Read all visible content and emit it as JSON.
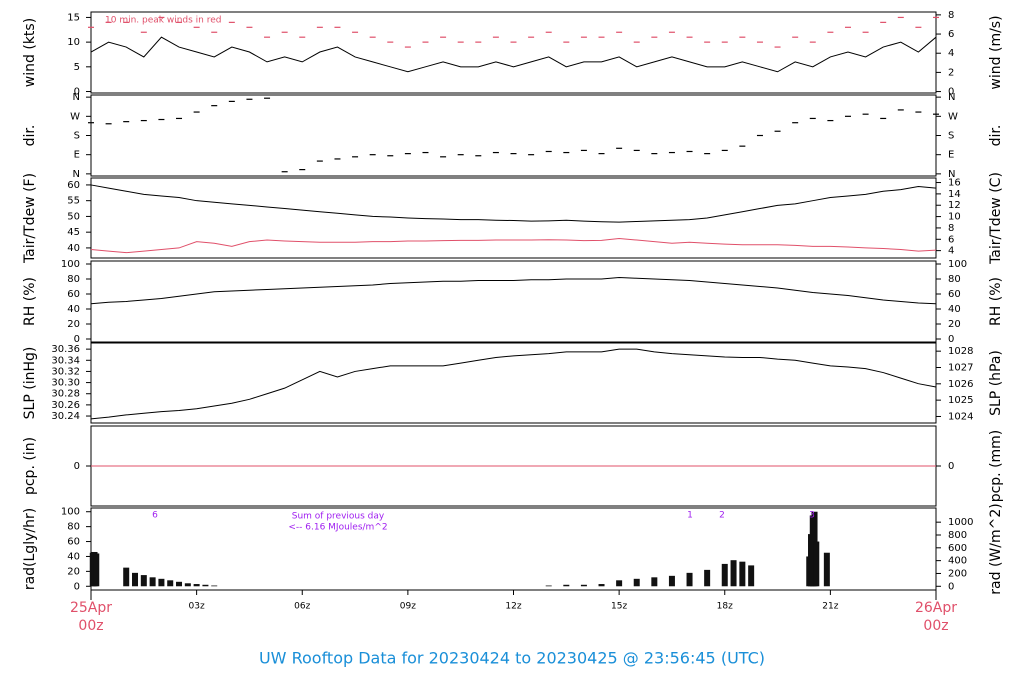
{
  "title": "UW Rooftop Data for 20230424  to  20230425 @ 23:56:45  (UTC)",
  "chart_data": [
    {
      "type": "line",
      "ylabel": "wind (kts)",
      "y2label": "wind (m/s)",
      "annotations": [
        "10 min. peak winds in red"
      ],
      "annotation_color": "#e0506a",
      "xlim": [
        0,
        24
      ],
      "ylim": [
        -0.3,
        16.1
      ],
      "yticks": [
        0,
        5,
        10,
        15
      ],
      "y2lim": [
        -0.15,
        8.3
      ],
      "y2ticks": [
        0,
        2,
        4,
        6,
        8
      ],
      "x": [
        0,
        0.5,
        1,
        1.5,
        2,
        2.5,
        3,
        3.5,
        4,
        4.5,
        5,
        5.5,
        6,
        6.5,
        7,
        7.5,
        8,
        8.5,
        9,
        9.5,
        10,
        10.5,
        11,
        11.5,
        12,
        12.5,
        13,
        13.5,
        14,
        14.5,
        15,
        15.5,
        16,
        16.5,
        17,
        17.5,
        18,
        18.5,
        19,
        19.5,
        20,
        20.5,
        21,
        21.5,
        22,
        22.5,
        23,
        23.5,
        24
      ],
      "series": [
        {
          "color": "#000000",
          "marker": "line",
          "values": [
            8,
            10,
            9,
            7,
            11,
            9,
            8,
            7,
            9,
            8,
            6,
            7,
            6,
            8,
            9,
            7,
            6,
            5,
            4,
            5,
            6,
            5,
            5,
            6,
            5,
            6,
            7,
            5,
            6,
            6,
            7,
            5,
            6,
            7,
            6,
            5,
            5,
            6,
            5,
            4,
            6,
            5,
            7,
            8,
            7,
            9,
            10,
            8,
            11
          ]
        },
        {
          "color": "#e0506a",
          "marker": "dash",
          "values": [
            13,
            14,
            14,
            12,
            15,
            14,
            13,
            12,
            14,
            13,
            11,
            12,
            11,
            13,
            13,
            12,
            11,
            10,
            9,
            10,
            11,
            10,
            10,
            11,
            10,
            11,
            12,
            10,
            11,
            11,
            12,
            10,
            11,
            12,
            11,
            10,
            10,
            11,
            10,
            9,
            11,
            10,
            12,
            13,
            12,
            14,
            15,
            13,
            15
          ]
        }
      ]
    },
    {
      "type": "scatter",
      "ylabel": "dir.",
      "y2label": "dir.",
      "xlim": [
        0,
        24
      ],
      "ylim": [
        -10,
        370
      ],
      "yticks": [
        {
          "value": 0,
          "label": "N"
        },
        {
          "value": 90,
          "label": "E"
        },
        {
          "value": 180,
          "label": "S"
        },
        {
          "value": 270,
          "label": "W"
        },
        {
          "value": 360,
          "label": "N"
        }
      ],
      "y2lim": [
        -10,
        370
      ],
      "y2ticks": [
        {
          "value": 0,
          "label": "N"
        },
        {
          "value": 90,
          "label": "E"
        },
        {
          "value": 180,
          "label": "S"
        },
        {
          "value": 270,
          "label": "W"
        },
        {
          "value": 360,
          "label": "N"
        }
      ],
      "x": [
        0,
        0.5,
        1,
        1.5,
        2,
        2.5,
        3,
        3.5,
        4,
        4.5,
        5,
        5.5,
        6,
        6.5,
        7,
        7.5,
        8,
        8.5,
        9,
        9.5,
        10,
        10.5,
        11,
        11.5,
        12,
        12.5,
        13,
        13.5,
        14,
        14.5,
        15,
        15.5,
        16,
        16.5,
        17,
        17.5,
        18,
        18.5,
        19,
        19.5,
        20,
        20.5,
        21,
        21.5,
        22,
        22.5,
        23,
        23.5,
        24
      ],
      "series": [
        {
          "color": "#000000",
          "marker": "dash",
          "values": [
            240,
            235,
            245,
            250,
            255,
            260,
            290,
            320,
            340,
            350,
            355,
            10,
            20,
            60,
            70,
            80,
            90,
            85,
            95,
            100,
            80,
            90,
            85,
            100,
            95,
            90,
            105,
            100,
            110,
            95,
            120,
            110,
            95,
            100,
            105,
            95,
            110,
            130,
            180,
            200,
            240,
            260,
            250,
            270,
            280,
            260,
            300,
            290,
            280
          ]
        }
      ]
    },
    {
      "type": "line",
      "ylabel": "Tair/Tdew (F)",
      "y2label": "Tair/Tdew (C)",
      "xlim": [
        0,
        24
      ],
      "ylim": [
        36.8,
        62.2
      ],
      "yticks": [
        40,
        45,
        50,
        55,
        60
      ],
      "y2lim": [
        2.7,
        16.8
      ],
      "y2ticks": [
        4,
        6,
        8,
        10,
        12,
        14,
        16
      ],
      "x": [
        0,
        0.5,
        1,
        1.5,
        2,
        2.5,
        3,
        3.5,
        4,
        4.5,
        5,
        5.5,
        6,
        6.5,
        7,
        7.5,
        8,
        8.5,
        9,
        9.5,
        10,
        10.5,
        11,
        11.5,
        12,
        12.5,
        13,
        13.5,
        14,
        14.5,
        15,
        15.5,
        16,
        16.5,
        17,
        17.5,
        18,
        18.5,
        19,
        19.5,
        20,
        20.5,
        21,
        21.5,
        22,
        22.5,
        23,
        23.5,
        24
      ],
      "series": [
        {
          "color": "#000000",
          "marker": "line",
          "values": [
            60,
            59,
            58,
            57,
            56.5,
            56,
            55,
            54.5,
            54,
            53.5,
            53,
            52.5,
            52,
            51.5,
            51,
            50.5,
            50,
            49.8,
            49.5,
            49.3,
            49.2,
            49,
            49,
            48.8,
            48.7,
            48.5,
            48.6,
            48.8,
            48.5,
            48.3,
            48.2,
            48.4,
            48.6,
            48.8,
            49,
            49.5,
            50.5,
            51.5,
            52.5,
            53.5,
            54,
            55,
            56,
            56.5,
            57,
            58,
            58.5,
            59.5,
            59
          ]
        },
        {
          "color": "#e0506a",
          "marker": "line",
          "values": [
            39.5,
            39,
            38.5,
            39,
            39.5,
            40,
            42,
            41.5,
            40.5,
            42,
            42.5,
            42.2,
            42,
            41.8,
            41.8,
            41.8,
            42,
            42,
            42.2,
            42.2,
            42.3,
            42.4,
            42.4,
            42.5,
            42.5,
            42.5,
            42.6,
            42.5,
            42.3,
            42.4,
            43,
            42.5,
            42,
            41.5,
            41.8,
            41.5,
            41.2,
            41,
            41,
            41,
            40.8,
            40.5,
            40.5,
            40.3,
            40,
            39.8,
            39.5,
            39,
            39.3
          ]
        }
      ]
    },
    {
      "type": "line",
      "ylabel": "RH (%)",
      "y2label": "RH (%)",
      "xlim": [
        0,
        24
      ],
      "ylim": [
        -4,
        104
      ],
      "yticks": [
        0,
        20,
        40,
        60,
        80,
        100
      ],
      "y2lim": [
        -4,
        104
      ],
      "y2ticks": [
        0,
        20,
        40,
        60,
        80,
        100
      ],
      "x": [
        0,
        0.5,
        1,
        1.5,
        2,
        2.5,
        3,
        3.5,
        4,
        4.5,
        5,
        5.5,
        6,
        6.5,
        7,
        7.5,
        8,
        8.5,
        9,
        9.5,
        10,
        10.5,
        11,
        11.5,
        12,
        12.5,
        13,
        13.5,
        14,
        14.5,
        15,
        15.5,
        16,
        16.5,
        17,
        17.5,
        18,
        18.5,
        19,
        19.5,
        20,
        20.5,
        21,
        21.5,
        22,
        22.5,
        23,
        23.5,
        24
      ],
      "series": [
        {
          "color": "#000000",
          "marker": "line",
          "values": [
            47,
            49,
            50,
            52,
            54,
            57,
            60,
            63,
            64,
            65,
            66,
            67,
            68,
            69,
            70,
            71,
            72,
            74,
            75,
            76,
            77,
            77,
            78,
            78,
            78,
            79,
            79,
            80,
            80,
            80,
            82,
            81,
            80,
            79,
            78,
            76,
            74,
            72,
            70,
            68,
            65,
            62,
            60,
            58,
            55,
            52,
            50,
            48,
            47
          ]
        }
      ]
    },
    {
      "type": "line",
      "ylabel": "SLP (inHg)",
      "y2label": "SLP (hPa)",
      "xlim": [
        0,
        24
      ],
      "ylim": [
        30.2275,
        30.371
      ],
      "yticks": [
        30.24,
        30.26,
        30.28,
        {
          "value": 30.3,
          "label": "30.30"
        },
        30.32,
        30.34,
        30.36
      ],
      "y2lim": [
        1023.6,
        1028.5
      ],
      "y2ticks": [
        1024,
        1025,
        1026,
        1027,
        1028
      ],
      "x": [
        0,
        0.5,
        1,
        1.5,
        2,
        2.5,
        3,
        3.5,
        4,
        4.5,
        5,
        5.5,
        6,
        6.5,
        7,
        7.5,
        8,
        8.5,
        9,
        9.5,
        10,
        10.5,
        11,
        11.5,
        12,
        12.5,
        13,
        13.5,
        14,
        14.5,
        15,
        15.5,
        16,
        16.5,
        17,
        17.5,
        18,
        18.5,
        19,
        19.5,
        20,
        20.5,
        21,
        21.5,
        22,
        22.5,
        23,
        23.5,
        24
      ],
      "series": [
        {
          "color": "#000000",
          "marker": "line",
          "values": [
            30.235,
            30.238,
            30.242,
            30.245,
            30.248,
            30.25,
            30.253,
            30.258,
            30.263,
            30.27,
            30.28,
            30.29,
            30.305,
            30.32,
            30.31,
            30.32,
            30.325,
            30.33,
            30.33,
            30.33,
            30.33,
            30.335,
            30.34,
            30.345,
            30.348,
            30.35,
            30.352,
            30.355,
            30.355,
            30.355,
            30.36,
            30.36,
            30.355,
            30.352,
            30.35,
            30.348,
            30.346,
            30.345,
            30.345,
            30.342,
            30.34,
            30.335,
            30.33,
            30.328,
            30.325,
            30.318,
            30.308,
            30.298,
            30.292
          ]
        }
      ]
    },
    {
      "type": "line",
      "ylabel": "pcp. (in)",
      "y2label": "pcp. (mm)",
      "xlim": [
        0,
        24
      ],
      "ylim": [
        -1,
        1
      ],
      "yticks": [
        0
      ],
      "y2lim": [
        -1,
        1
      ],
      "y2ticks": [
        0
      ],
      "x": [
        0,
        24
      ],
      "series": [
        {
          "color": "#e0506a",
          "marker": "line",
          "values": [
            0,
            0
          ]
        }
      ]
    },
    {
      "type": "bar",
      "ylabel": "rad(Lgly/hr)",
      "y2label": "rad (W/m^2)",
      "annotations": [
        "6",
        "Sum of previous day",
        "<-- 6.16 MJoules/m^2",
        "1",
        "2",
        "3"
      ],
      "annotation_color": "#a020f0",
      "xlim": [
        0,
        24
      ],
      "ylim": [
        -5,
        105
      ],
      "yticks": [
        0,
        20,
        40,
        60,
        80,
        100
      ],
      "y2lim": [
        -58,
        1221
      ],
      "y2ticks": [
        0,
        200,
        400,
        600,
        800,
        1000
      ],
      "xticks": [
        {
          "value": 3,
          "label": "03z"
        },
        {
          "value": 6,
          "label": "06z"
        },
        {
          "value": 9,
          "label": "09z"
        },
        {
          "value": 12,
          "label": "12z"
        },
        {
          "value": 15,
          "label": "15z"
        },
        {
          "value": 18,
          "label": "18z"
        },
        {
          "value": 21,
          "label": "21z"
        }
      ],
      "date_labels": [
        {
          "value": 0,
          "date": "25Apr",
          "time": "00z"
        },
        {
          "value": 24,
          "date": "26Apr",
          "time": "00z"
        }
      ],
      "x": [
        0.05,
        0.1,
        0.15,
        1,
        1.25,
        1.5,
        1.75,
        2,
        2.25,
        2.5,
        2.75,
        3,
        3.25,
        3.5,
        13,
        13.5,
        14,
        14.5,
        15,
        15.5,
        16,
        16.5,
        17,
        17.5,
        18,
        18.25,
        18.5,
        18.75,
        20.4,
        20.45,
        20.5,
        20.55,
        20.6,
        20.9
      ],
      "series": [
        {
          "color": "#111111",
          "values": [
            45,
            46,
            44,
            25,
            18,
            15,
            12,
            10,
            8,
            6,
            4,
            3,
            2,
            1,
            1,
            2,
            2,
            3,
            8,
            10,
            12,
            14,
            18,
            22,
            30,
            35,
            33,
            28,
            40,
            70,
            95,
            100,
            60,
            45
          ]
        }
      ]
    }
  ]
}
